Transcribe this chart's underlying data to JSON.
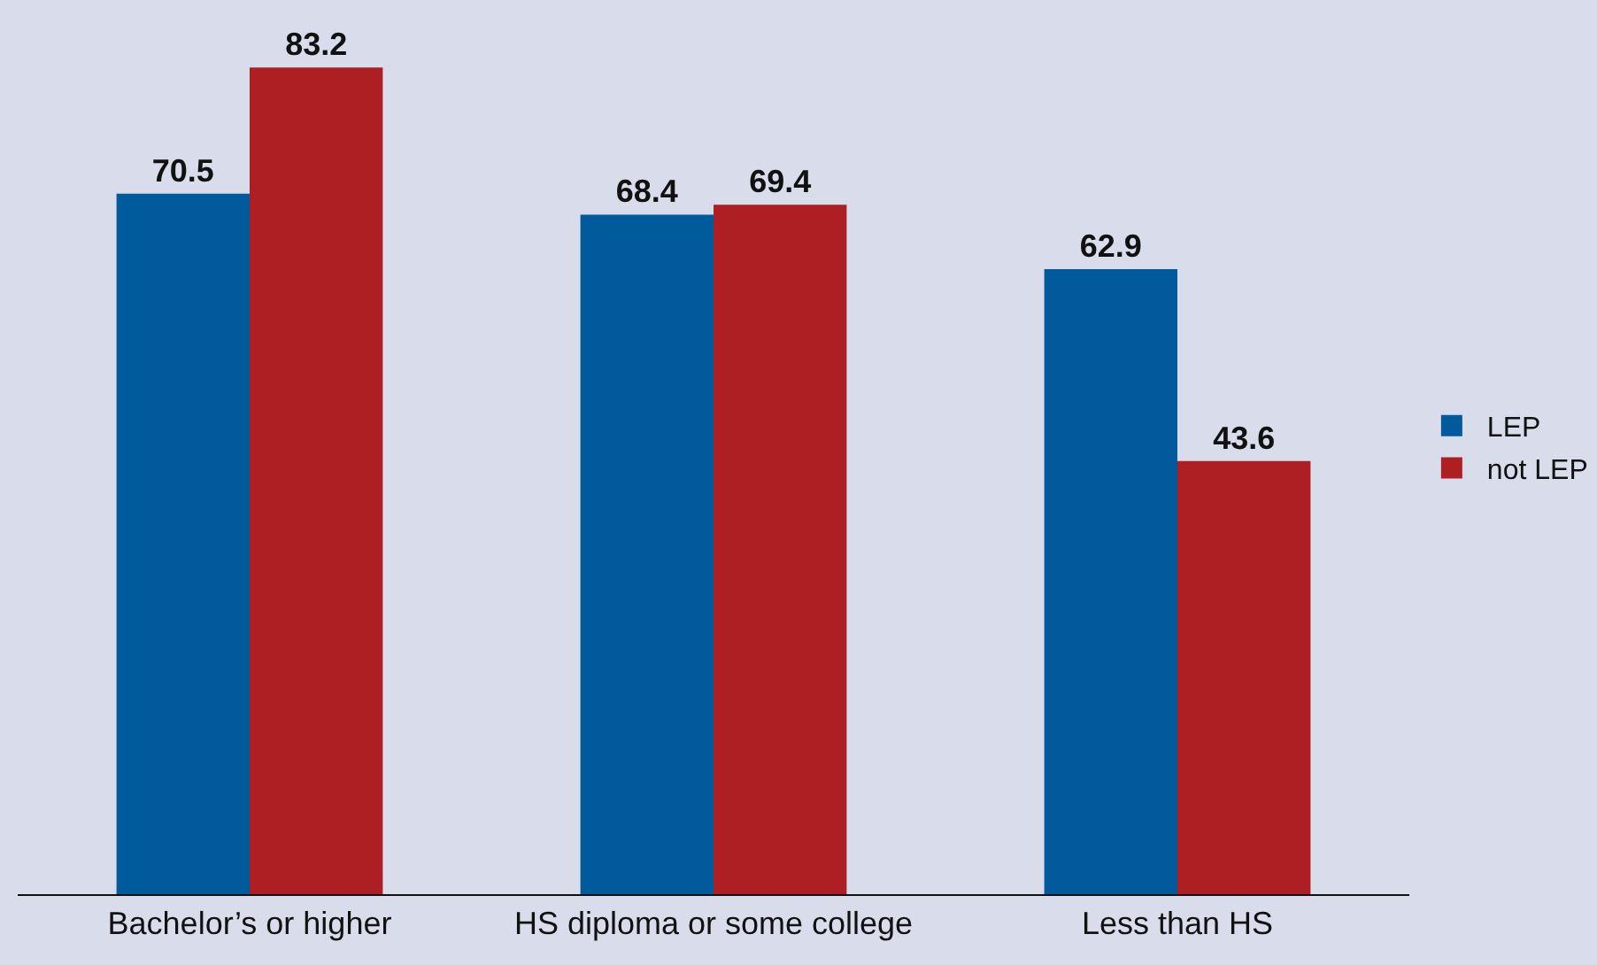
{
  "chart_data": {
    "type": "bar",
    "categories": [
      "Bachelor’s or higher",
      "HS diploma or some college",
      "Less than HS"
    ],
    "series": [
      {
        "name": "LEP",
        "color": "#005a9c",
        "values": [
          70.5,
          68.4,
          62.9
        ]
      },
      {
        "name": "not LEP",
        "color": "#ae1f24",
        "values": [
          83.2,
          69.4,
          43.6
        ]
      }
    ],
    "ylim": [
      0,
      90
    ],
    "data_labels": true,
    "legend": "right",
    "grid": false
  }
}
